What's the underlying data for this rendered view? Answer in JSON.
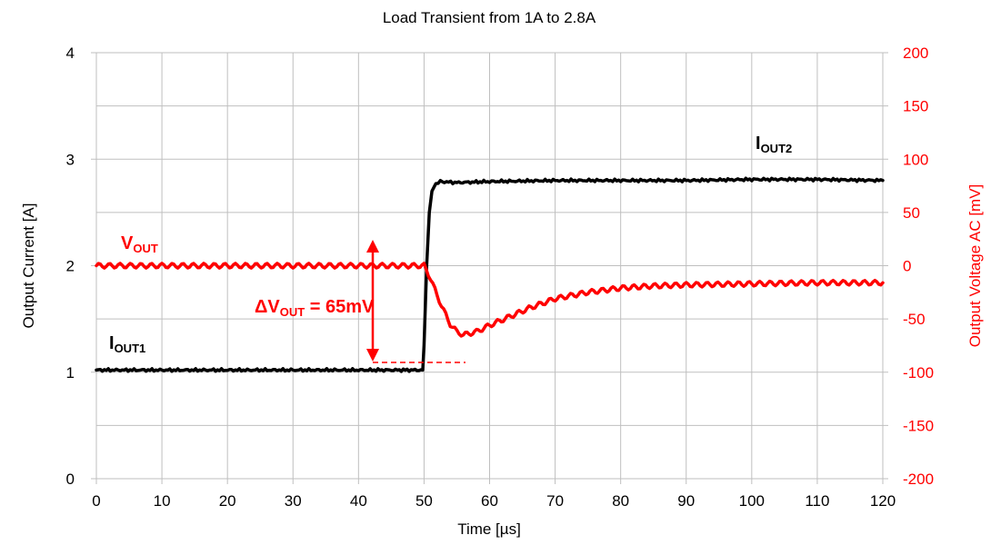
{
  "chart_data": {
    "type": "line",
    "title": "Load Transient from 1A to 2.8A",
    "xlabel": "Time [µs]",
    "ylabel": "Output Current  [A]",
    "y2label": "Output Voltage AC  [mV]",
    "xlim": [
      0,
      120
    ],
    "ylim": [
      0,
      4
    ],
    "y2lim": [
      -200,
      200
    ],
    "x_ticks": [
      0,
      10,
      20,
      30,
      40,
      50,
      60,
      70,
      80,
      90,
      100,
      110,
      120
    ],
    "y_ticks": [
      0,
      1,
      2,
      3,
      4
    ],
    "y2_ticks": [
      -200,
      -150,
      -100,
      -50,
      0,
      50,
      100,
      150,
      200
    ],
    "grid": true,
    "colors": {
      "current": "#000000",
      "voltage": "#ff0000",
      "grid": "#bfbfbf",
      "axis2": "#ff0000"
    },
    "series": [
      {
        "name": "IOUT",
        "axis": "left",
        "color": "#000000",
        "x": [
          0,
          10,
          20,
          30,
          40,
          49.8,
          50.0,
          50.4,
          50.8,
          51.2,
          51.8,
          52.5,
          55,
          60,
          70,
          80,
          90,
          100,
          110,
          120
        ],
        "y": [
          1.02,
          1.02,
          1.02,
          1.02,
          1.02,
          1.02,
          1.25,
          2.0,
          2.5,
          2.7,
          2.77,
          2.79,
          2.78,
          2.79,
          2.8,
          2.8,
          2.8,
          2.81,
          2.81,
          2.8
        ]
      },
      {
        "name": "VOUT",
        "axis": "right",
        "color": "#ff0000",
        "x": [
          0,
          10,
          20,
          30,
          40,
          50,
          51,
          52,
          53,
          54,
          55,
          56,
          58,
          60,
          63,
          66,
          70,
          75,
          80,
          85,
          90,
          100,
          110,
          120
        ],
        "y": [
          0,
          0,
          0,
          0,
          0,
          0,
          -12,
          -28,
          -42,
          -55,
          -62,
          -65,
          -62,
          -56,
          -48,
          -40,
          -31,
          -25,
          -21,
          -19,
          -18,
          -17,
          -16,
          -16
        ]
      }
    ],
    "annotations": {
      "iout1": {
        "main": "I",
        "sub": "OUT1"
      },
      "iout2": {
        "main": "I",
        "sub": "OUT2"
      },
      "vout": {
        "main": "V",
        "sub": "OUT"
      },
      "delta": {
        "prefix": "ΔV",
        "sub": "OUT",
        "suffix": " = 65mV"
      }
    }
  }
}
